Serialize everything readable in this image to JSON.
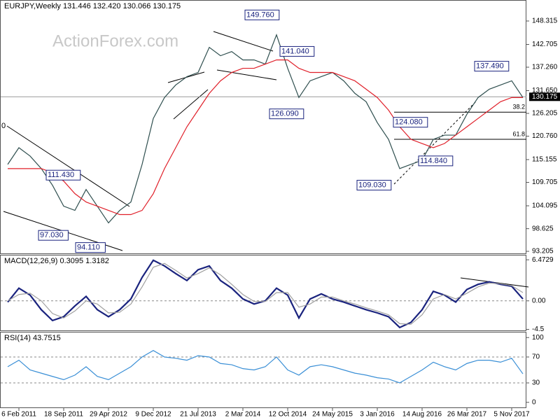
{
  "chart_data": [
    {
      "type": "line",
      "title": "EURJPY,Weekly  131.446 132.420 130.066 130.175",
      "watermark": "ActionForex.com",
      "categories": [
        null,
        "6 Feb 2011",
        null,
        null,
        null,
        "18 Sep 2011",
        null,
        null,
        null,
        "29 Apr 2012",
        null,
        null,
        null,
        "9 Dec 2012",
        null,
        null,
        null,
        "21 Jul 2013",
        null,
        null,
        null,
        "2 Mar 2014",
        null,
        null,
        null,
        "12 Oct 2014",
        null,
        null,
        null,
        "24 May 2015",
        null,
        null,
        null,
        "3 Jan 2016",
        null,
        null,
        null,
        "14 Aug 2016",
        null,
        null,
        null,
        "26 Mar 2017",
        null,
        null,
        null,
        "5 Nov 2017",
        null
      ],
      "series": [
        {
          "color": "#2f4f4f",
          "values": [
            114,
            118,
            116,
            113,
            109,
            104,
            103,
            108,
            104,
            100,
            103,
            105,
            114,
            125,
            130,
            133,
            135,
            136,
            142,
            140,
            141,
            139,
            139,
            138,
            145,
            137,
            130,
            134,
            135,
            136,
            134,
            131,
            129,
            124,
            120,
            113,
            114,
            115,
            120,
            121,
            121,
            126,
            130,
            132,
            133,
            134,
            130
          ]
        },
        {
          "color": "#e0202a",
          "values": [
            113,
            113,
            113,
            113,
            112,
            110,
            107,
            105,
            104,
            103,
            102,
            102,
            103,
            107,
            113,
            118,
            123,
            127,
            131,
            134,
            136,
            137,
            137,
            138,
            139,
            139,
            137,
            136,
            136,
            136,
            135,
            134,
            132,
            130,
            127,
            123,
            120,
            119,
            118,
            119,
            121,
            123,
            125,
            127,
            129,
            130,
            130
          ]
        }
      ],
      "ylim": [
        92.54,
        153.17
      ],
      "yticks": [
        148.315,
        142.705,
        {
          "value": 137.26,
          "label": "137.260"
        },
        {
          "value": 131.65,
          "label": "131.650"
        },
        126.205,
        {
          "value": 120.76,
          "label": "120.760"
        },
        115.155,
        109.705,
        104.095,
        98.625,
        93.205
      ],
      "last_price": {
        "value": 130.175,
        "label": "130.175"
      },
      "annotations": [
        {
          "value": 149.76,
          "label": "149.760"
        },
        {
          "value": 141.04,
          "label": "141.040"
        },
        {
          "value": 126.09,
          "label": "126.090"
        },
        {
          "value": 137.49,
          "label": "137.490"
        },
        {
          "value": 124.08,
          "label": "124.080"
        },
        {
          "value": 114.84,
          "label": "114.840"
        },
        {
          "value": 109.03,
          "label": "109.030"
        },
        {
          "value": 111.43,
          "label": "111.430"
        },
        {
          "value": 97.03,
          "label": "97.030"
        },
        {
          "value": 94.11,
          "label": "94.110"
        }
      ],
      "clipped_label": "0",
      "levels": [
        {
          "value": 126.5,
          "label": "38.2"
        },
        {
          "value": 120.0,
          "label": "61.8"
        }
      ]
    },
    {
      "type": "line",
      "title": "MACD(12,26,9) 0.3095 1.3182",
      "series": [
        {
          "color": "#1a237e",
          "values": [
            -0.2,
            2,
            0.9,
            -1.4,
            -3.1,
            -2.5,
            -0.8,
            0.7,
            -1.4,
            -2.5,
            -1.4,
            0.3,
            3.7,
            6.4,
            5.5,
            4.3,
            3.2,
            4.9,
            5.5,
            3.2,
            2,
            0.3,
            -0.5,
            0,
            2,
            0.9,
            -2.7,
            0.3,
            1.1,
            0.3,
            -0.2,
            -0.8,
            -1.4,
            -1.9,
            -2.5,
            -4.2,
            -3.4,
            -1.4,
            1.5,
            0.9,
            -0.2,
            1.8,
            2.6,
            3,
            2.6,
            2.3,
            0.3
          ]
        },
        {
          "color": "#a0a0a0",
          "values": [
            0,
            1,
            1.2,
            0,
            -2,
            -2.7,
            -1.6,
            0,
            -0.5,
            -1.9,
            -1.8,
            -0.5,
            2.2,
            5.3,
            5.9,
            4.8,
            3.6,
            4.3,
            5.2,
            4.1,
            2.6,
            1,
            -0.1,
            -0.1,
            1.3,
            1.3,
            -1,
            -0.5,
            0.6,
            0.6,
            0,
            -0.5,
            -1.1,
            -1.6,
            -2.2,
            -3.6,
            -3.7,
            -2.2,
            0.3,
            1,
            0.3,
            1.2,
            2.2,
            2.8,
            2.7,
            2.4,
            1.3
          ]
        }
      ],
      "ylim": [
        -4.77,
        7.15
      ],
      "yticks": [
        6.4729,
        {
          "value": 0,
          "label": "0.00"
        },
        -4.5
      ],
      "guides": [
        0
      ]
    },
    {
      "type": "line",
      "title": "RSI(14) 43.7515",
      "series": [
        {
          "color": "#3a8fd6",
          "values": [
            55,
            65,
            50,
            45,
            40,
            35,
            42,
            55,
            40,
            35,
            45,
            55,
            70,
            80,
            70,
            68,
            65,
            72,
            70,
            60,
            58,
            52,
            50,
            55,
            70,
            50,
            42,
            55,
            58,
            55,
            50,
            45,
            42,
            38,
            36,
            30,
            40,
            50,
            62,
            55,
            50,
            60,
            65,
            65,
            62,
            68,
            44
          ]
        }
      ],
      "ylim": [
        -8.9,
        107.8
      ],
      "yticks": [
        100,
        70,
        30,
        0
      ],
      "guides": [
        70,
        30
      ]
    }
  ]
}
